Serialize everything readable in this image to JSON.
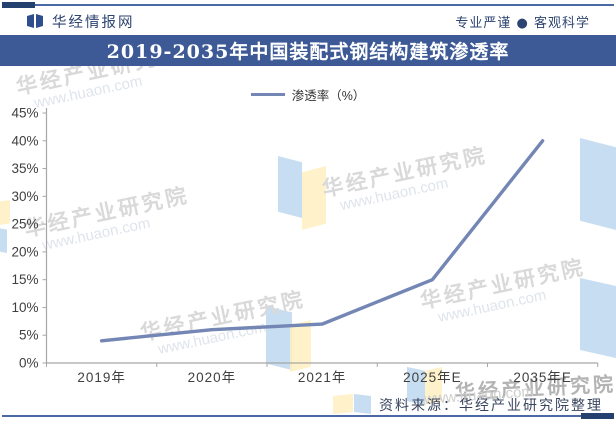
{
  "header": {
    "brand": "华经情报网",
    "slogan": "专业严谨 ● 客观科学"
  },
  "title": "2019-2035年中国装配式钢结构建筑渗透率",
  "legend": {
    "label": "渗透率（%）"
  },
  "footer": {
    "source": "资料来源：华经产业研究院整理"
  },
  "watermark": {
    "name": "华经产业研究院",
    "url": "www.huaon.com"
  },
  "colors": {
    "banner": "#3D5A97",
    "frame_rule": "#4A69A5",
    "frame_dash": "#24406E",
    "line": "#7386B4",
    "axis": "#A6A6A6",
    "flag_blue": "#BDD7EE",
    "flag_yellow": "#FFEFC0"
  },
  "chart_data": {
    "type": "line",
    "title": "2019-2035年中国装配式钢结构建筑渗透率",
    "categories": [
      "2019年",
      "2020年",
      "2021年",
      "2025年E",
      "2035年E"
    ],
    "series": [
      {
        "name": "渗透率（%）",
        "values": [
          4,
          6,
          7,
          15,
          40
        ]
      }
    ],
    "xlabel": "",
    "ylabel": "",
    "ylim": [
      0,
      45
    ],
    "ytick_step": 5,
    "ytick_labels": [
      "0%",
      "5%",
      "10%",
      "15%",
      "20%",
      "25%",
      "30%",
      "35%",
      "40%",
      "45%"
    ],
    "grid": false,
    "legend_position": "top-center",
    "line_color": "#7386B4",
    "axis_color": "#A6A6A6",
    "tick_label_color": "#3f3f3f"
  }
}
